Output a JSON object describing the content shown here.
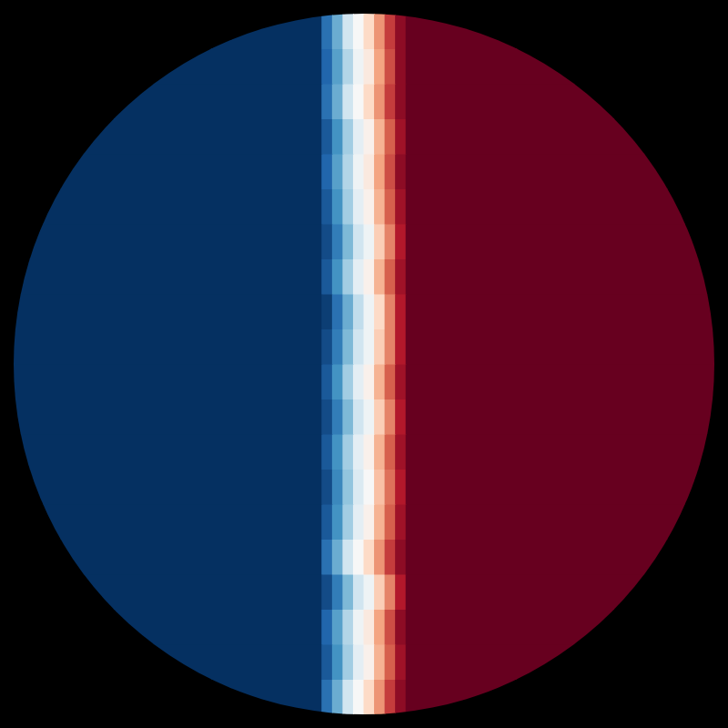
{
  "chart_data": {
    "type": "heatmap",
    "tick_labels": false,
    "zlim": [
      -1,
      1
    ],
    "x_edges": [
      -1,
      -0.12,
      -0.09,
      -0.06,
      -0.03,
      0,
      0.03,
      0.06,
      0.09,
      0.12,
      1
    ],
    "y_edges": [
      -1,
      -0.9,
      -0.8,
      -0.7,
      -0.6,
      -0.5,
      -0.4,
      -0.3,
      -0.2,
      -0.1,
      0,
      0.1,
      0.2,
      0.3,
      0.4,
      0.5,
      0.6,
      0.7,
      0.8,
      0.9,
      1
    ],
    "z": [
      [
        -1,
        -0.75,
        -0.5,
        -0.2,
        0.0,
        0.2,
        0.45,
        0.7,
        0.9,
        1
      ],
      [
        -1,
        -0.85,
        -0.6,
        -0.35,
        -0.1,
        0.05,
        0.35,
        0.6,
        0.85,
        1
      ],
      [
        -1,
        -0.8,
        -0.55,
        -0.3,
        -0.05,
        0.1,
        0.4,
        0.65,
        0.9,
        1
      ],
      [
        -1,
        -0.9,
        -0.7,
        -0.45,
        -0.2,
        -0.05,
        0.25,
        0.5,
        0.8,
        1
      ],
      [
        -1,
        -0.75,
        -0.5,
        -0.2,
        0.0,
        0.2,
        0.45,
        0.7,
        0.9,
        1
      ],
      [
        -1,
        -0.85,
        -0.6,
        -0.35,
        -0.1,
        0.05,
        0.35,
        0.6,
        0.85,
        1
      ],
      [
        -1,
        -0.9,
        -0.65,
        -0.4,
        -0.15,
        0.0,
        0.3,
        0.55,
        0.8,
        1
      ],
      [
        -1,
        -0.85,
        -0.6,
        -0.35,
        -0.1,
        0.05,
        0.35,
        0.6,
        0.85,
        1
      ],
      [
        -1,
        -0.9,
        -0.7,
        -0.45,
        -0.2,
        -0.05,
        0.25,
        0.5,
        0.8,
        1
      ],
      [
        -1,
        -0.85,
        -0.6,
        -0.35,
        -0.1,
        0.05,
        0.35,
        0.6,
        0.85,
        1
      ],
      [
        -1,
        -0.9,
        -0.7,
        -0.45,
        -0.2,
        -0.05,
        0.25,
        0.5,
        0.8,
        1
      ],
      [
        -1,
        -0.95,
        -0.75,
        -0.5,
        -0.25,
        -0.05,
        0.2,
        0.5,
        0.8,
        1
      ],
      [
        -1,
        -0.85,
        -0.6,
        -0.35,
        -0.1,
        0.05,
        0.35,
        0.6,
        0.85,
        1
      ],
      [
        -1,
        -0.9,
        -0.7,
        -0.45,
        -0.2,
        -0.05,
        0.25,
        0.5,
        0.8,
        1
      ],
      [
        -1,
        -0.85,
        -0.6,
        -0.35,
        -0.1,
        0.05,
        0.35,
        0.6,
        0.85,
        1
      ],
      [
        -1,
        -0.8,
        -0.55,
        -0.3,
        -0.05,
        0.1,
        0.4,
        0.65,
        0.9,
        1
      ],
      [
        -1,
        -0.85,
        -0.6,
        -0.35,
        -0.1,
        0.05,
        0.35,
        0.6,
        0.85,
        1
      ],
      [
        -1,
        -0.75,
        -0.5,
        -0.2,
        0.0,
        0.2,
        0.45,
        0.7,
        0.9,
        1
      ],
      [
        -1,
        -0.8,
        -0.55,
        -0.3,
        -0.05,
        0.1,
        0.4,
        0.65,
        0.9,
        1
      ],
      [
        -1,
        -0.75,
        -0.5,
        -0.2,
        0.0,
        0.2,
        0.45,
        0.7,
        0.9,
        1
      ]
    ]
  }
}
